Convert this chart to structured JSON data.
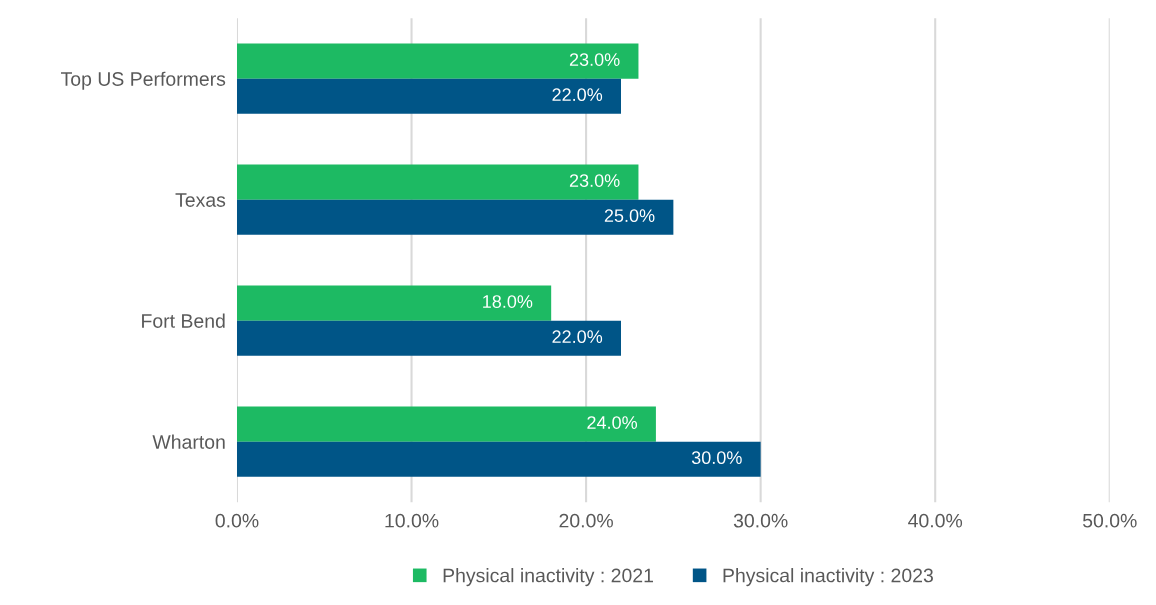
{
  "chart_data": {
    "type": "bar",
    "orientation": "horizontal",
    "categories": [
      "Top US Performers",
      "Texas",
      "Fort Bend",
      "Wharton"
    ],
    "series": [
      {
        "name": "Physical inactivity : 2021",
        "color": "#1dba63",
        "values": [
          23,
          23,
          18,
          24
        ],
        "value_labels": [
          "23.0%",
          "23.0%",
          "18.0%",
          "24.0%"
        ]
      },
      {
        "name": "Physical inactivity : 2023",
        "color": "#005587",
        "values": [
          22,
          25,
          22,
          30
        ],
        "value_labels": [
          "22.0%",
          "25.0%",
          "22.0%",
          "30.0%"
        ]
      }
    ],
    "xlim": [
      0,
      50
    ],
    "xticks": [
      {
        "value": 0,
        "label": "0.0%"
      },
      {
        "value": 10,
        "label": "10.0%"
      },
      {
        "value": 20,
        "label": "20.0%"
      },
      {
        "value": 30,
        "label": "30.0%"
      },
      {
        "value": 40,
        "label": "40.0%"
      },
      {
        "value": 50,
        "label": "50.0%"
      }
    ],
    "grid": "x",
    "legend": "bottom"
  }
}
